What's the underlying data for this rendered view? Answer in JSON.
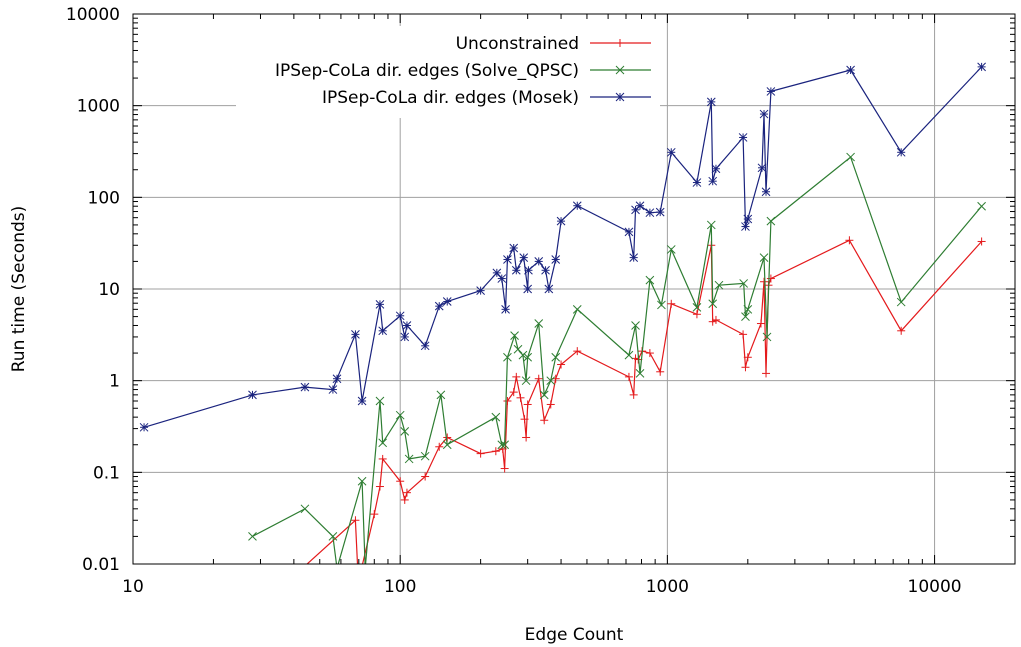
{
  "chart_data": {
    "type": "line",
    "title": "",
    "xlabel": "Edge Count",
    "ylabel": "Run time (Seconds)",
    "xscale": "log",
    "yscale": "log",
    "xlim": [
      10,
      20000
    ],
    "ylim": [
      0.01,
      10000
    ],
    "grid": true,
    "legend_position": "top-right",
    "x_ticks": [
      "10",
      "100",
      "1000",
      "10000"
    ],
    "y_ticks": [
      "0.01",
      "0.1",
      "1",
      "10",
      "100",
      "1000",
      "10000"
    ],
    "series": [
      {
        "name": "Unconstrained",
        "color": "#e41a1c",
        "marker": "+",
        "points": [
          [
            44,
            0.0095
          ],
          [
            68,
            0.03
          ],
          [
            70,
            0.005
          ],
          [
            72,
            0.0095
          ],
          [
            80,
            0.035
          ],
          [
            84,
            0.07
          ],
          [
            86,
            0.14
          ],
          [
            100,
            0.08
          ],
          [
            104,
            0.05
          ],
          [
            106,
            0.06
          ],
          [
            124,
            0.09
          ],
          [
            140,
            0.19
          ],
          [
            150,
            0.24
          ],
          [
            200,
            0.16
          ],
          [
            228,
            0.17
          ],
          [
            242,
            0.18
          ],
          [
            246,
            0.11
          ],
          [
            252,
            0.6
          ],
          [
            266,
            0.75
          ],
          [
            272,
            1.1
          ],
          [
            282,
            0.65
          ],
          [
            292,
            0.38
          ],
          [
            296,
            0.24
          ],
          [
            300,
            0.55
          ],
          [
            330,
            1.05
          ],
          [
            346,
            0.37
          ],
          [
            366,
            0.55
          ],
          [
            382,
            1.05
          ],
          [
            400,
            1.5
          ],
          [
            460,
            2.1
          ],
          [
            718,
            1.1
          ],
          [
            748,
            0.7
          ],
          [
            760,
            1.75
          ],
          [
            778,
            1.7
          ],
          [
            804,
            2.1
          ],
          [
            860,
            2.0
          ],
          [
            940,
            1.25
          ],
          [
            1034,
            6.9
          ],
          [
            1290,
            5.3
          ],
          [
            1460,
            30
          ],
          [
            1478,
            4.4
          ],
          [
            1520,
            4.6
          ],
          [
            1920,
            3.2
          ],
          [
            1960,
            1.4
          ],
          [
            2000,
            1.8
          ],
          [
            2240,
            4.2
          ],
          [
            2300,
            12
          ],
          [
            2340,
            1.2
          ],
          [
            2390,
            11
          ],
          [
            2440,
            13
          ],
          [
            4800,
            34
          ],
          [
            7500,
            3.5
          ],
          [
            15000,
            33
          ]
        ]
      },
      {
        "name": "IPSep-CoLa dir. edges (Solve_QPSC)",
        "color": "#2e7d32",
        "marker": "x",
        "points": [
          [
            28,
            0.02
          ],
          [
            44,
            0.04
          ],
          [
            56,
            0.02
          ],
          [
            58,
            0.009
          ],
          [
            72,
            0.08
          ],
          [
            74,
            0.009
          ],
          [
            84,
            0.6
          ],
          [
            86,
            0.21
          ],
          [
            100,
            0.42
          ],
          [
            104,
            0.28
          ],
          [
            108,
            0.14
          ],
          [
            124,
            0.15
          ],
          [
            142,
            0.7
          ],
          [
            150,
            0.2
          ],
          [
            228,
            0.4
          ],
          [
            240,
            0.2
          ],
          [
            246,
            0.2
          ],
          [
            252,
            1.8
          ],
          [
            268,
            3.1
          ],
          [
            276,
            2.2
          ],
          [
            288,
            1.9
          ],
          [
            296,
            1.0
          ],
          [
            300,
            1.8
          ],
          [
            330,
            4.2
          ],
          [
            346,
            0.7
          ],
          [
            366,
            1.0
          ],
          [
            382,
            1.8
          ],
          [
            460,
            6.0
          ],
          [
            718,
            1.9
          ],
          [
            760,
            4.0
          ],
          [
            790,
            1.2
          ],
          [
            860,
            12.5
          ],
          [
            950,
            6.7
          ],
          [
            1034,
            27
          ],
          [
            1290,
            6.3
          ],
          [
            1460,
            50
          ],
          [
            1478,
            6.9
          ],
          [
            1560,
            11
          ],
          [
            1930,
            11.5
          ],
          [
            1960,
            5.0
          ],
          [
            2000,
            6.0
          ],
          [
            2300,
            22
          ],
          [
            2360,
            3.0
          ],
          [
            2440,
            55
          ],
          [
            4850,
            275
          ],
          [
            7500,
            7.2
          ],
          [
            15000,
            80
          ]
        ]
      },
      {
        "name": "IPSep-CoLa dir. edges (Mosek)",
        "color": "#1a237e",
        "marker": "*",
        "points": [
          [
            11,
            0.31
          ],
          [
            28,
            0.7
          ],
          [
            44,
            0.85
          ],
          [
            56,
            0.8
          ],
          [
            58,
            1.05
          ],
          [
            68,
            3.2
          ],
          [
            72,
            0.6
          ],
          [
            84,
            6.8
          ],
          [
            86,
            3.5
          ],
          [
            100,
            5.1
          ],
          [
            104,
            3.0
          ],
          [
            106,
            4.0
          ],
          [
            124,
            2.4
          ],
          [
            140,
            6.5
          ],
          [
            150,
            7.3
          ],
          [
            200,
            9.6
          ],
          [
            230,
            15
          ],
          [
            240,
            13
          ],
          [
            248,
            6.0
          ],
          [
            252,
            21
          ],
          [
            266,
            28
          ],
          [
            272,
            16
          ],
          [
            290,
            22
          ],
          [
            300,
            10
          ],
          [
            302,
            16
          ],
          [
            330,
            20
          ],
          [
            350,
            16
          ],
          [
            360,
            10
          ],
          [
            382,
            21
          ],
          [
            400,
            55
          ],
          [
            460,
            81
          ],
          [
            718,
            42
          ],
          [
            748,
            22
          ],
          [
            760,
            73
          ],
          [
            790,
            81
          ],
          [
            860,
            68
          ],
          [
            940,
            69
          ],
          [
            1034,
            310
          ],
          [
            1290,
            145
          ],
          [
            1460,
            1100
          ],
          [
            1478,
            150
          ],
          [
            1520,
            205
          ],
          [
            1920,
            450
          ],
          [
            1960,
            48
          ],
          [
            2000,
            58
          ],
          [
            2260,
            210
          ],
          [
            2300,
            810
          ],
          [
            2340,
            115
          ],
          [
            2440,
            1430
          ],
          [
            4850,
            2450
          ],
          [
            7500,
            310
          ],
          [
            15000,
            2650
          ]
        ]
      }
    ]
  }
}
